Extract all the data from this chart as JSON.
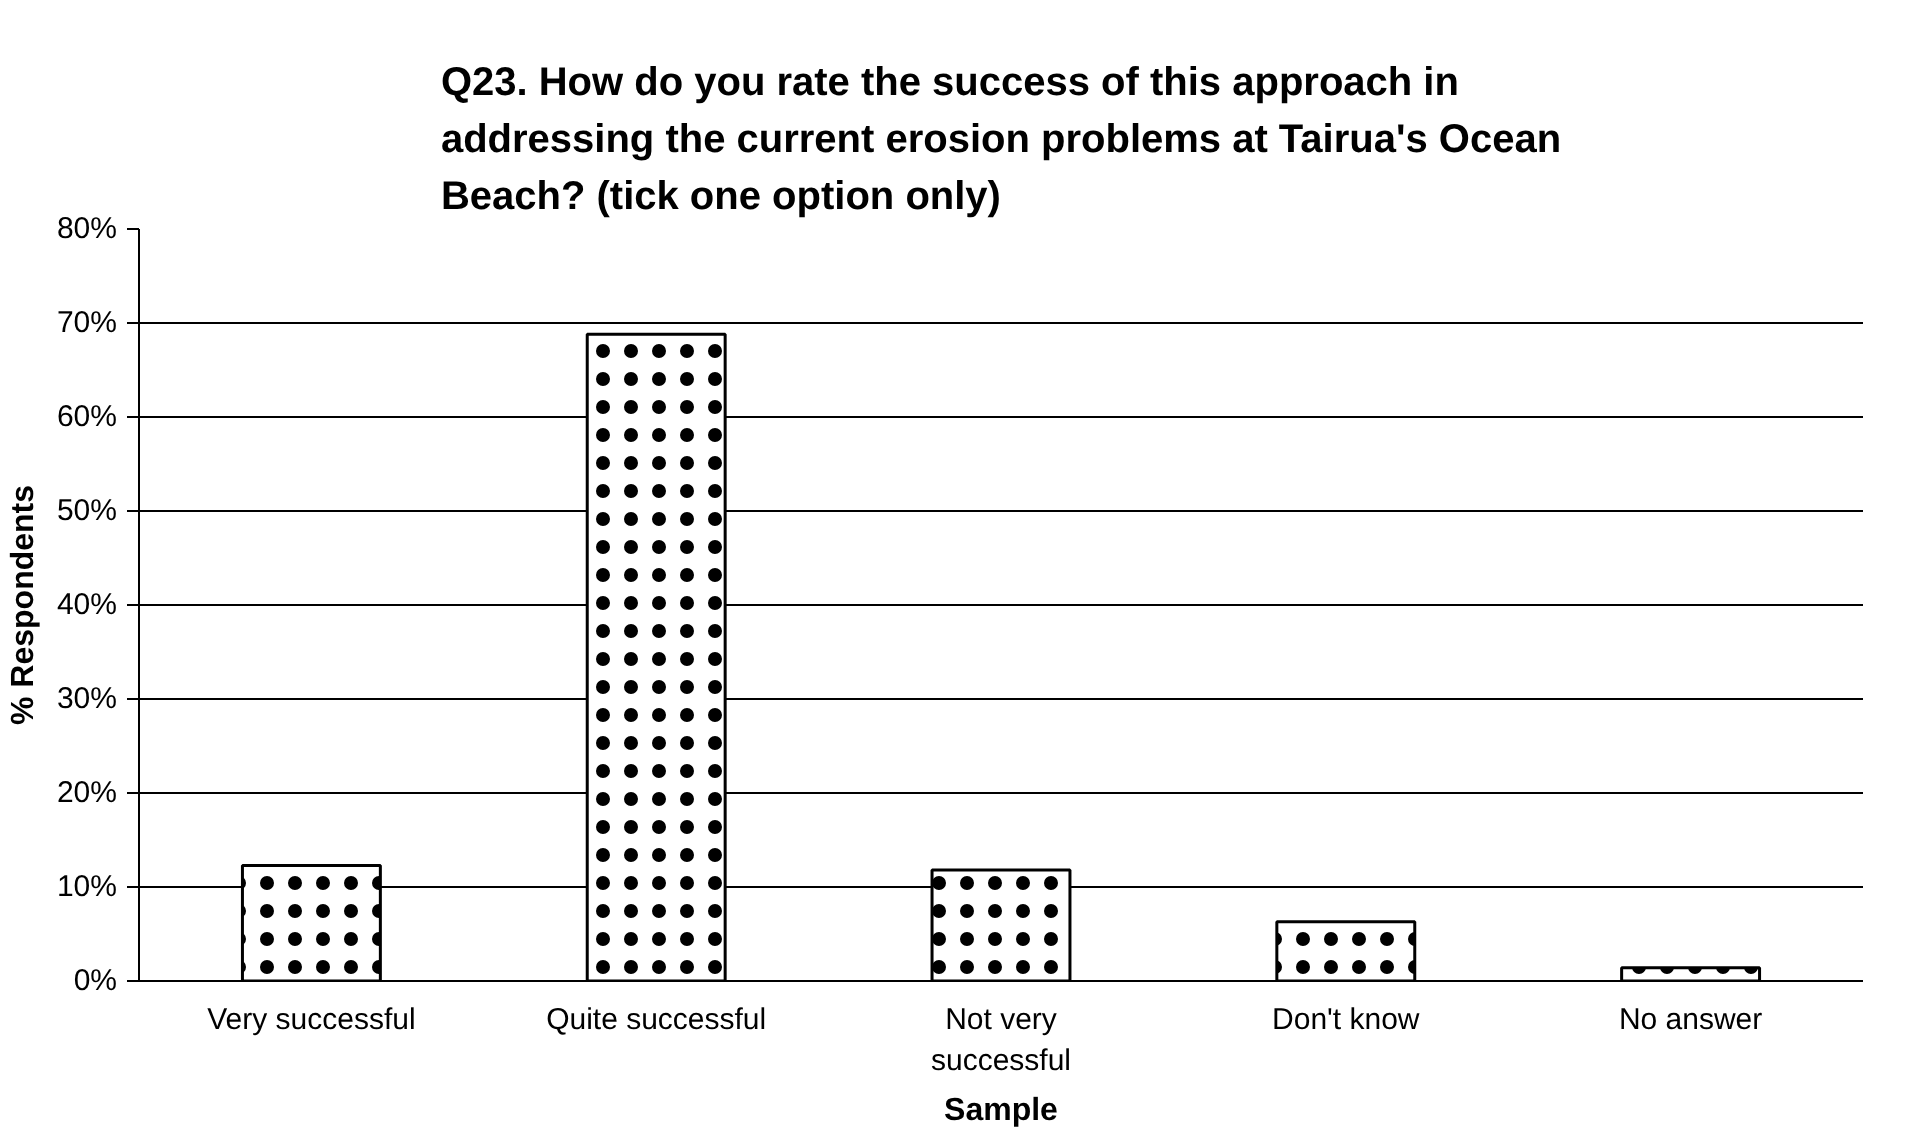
{
  "chart_data": {
    "type": "bar",
    "title": "Q23. How do you rate the success of this approach in addressing the current erosion problems at Tairua's Ocean Beach? (tick one option only)",
    "xlabel": "Sample",
    "ylabel": "% Respondents",
    "categories": [
      "Very successful",
      "Quite successful",
      "Not very successful",
      "Don't know",
      "No answer"
    ],
    "values": [
      12.3,
      68.8,
      11.8,
      6.3,
      1.4
    ],
    "color": "#ffffff",
    "ylim": [
      0,
      80
    ],
    "yticks": [
      {
        "value": 0,
        "label": "0%"
      },
      {
        "value": 10,
        "label": "10%"
      },
      {
        "value": 20,
        "label": "20%"
      },
      {
        "value": 30,
        "label": "30%"
      },
      {
        "value": 40,
        "label": "40%"
      },
      {
        "value": 50,
        "label": "50%"
      },
      {
        "value": 60,
        "label": "60%"
      },
      {
        "value": 70,
        "label": "70%"
      },
      {
        "value": 80,
        "label": "80%"
      }
    ],
    "grid": "y"
  }
}
